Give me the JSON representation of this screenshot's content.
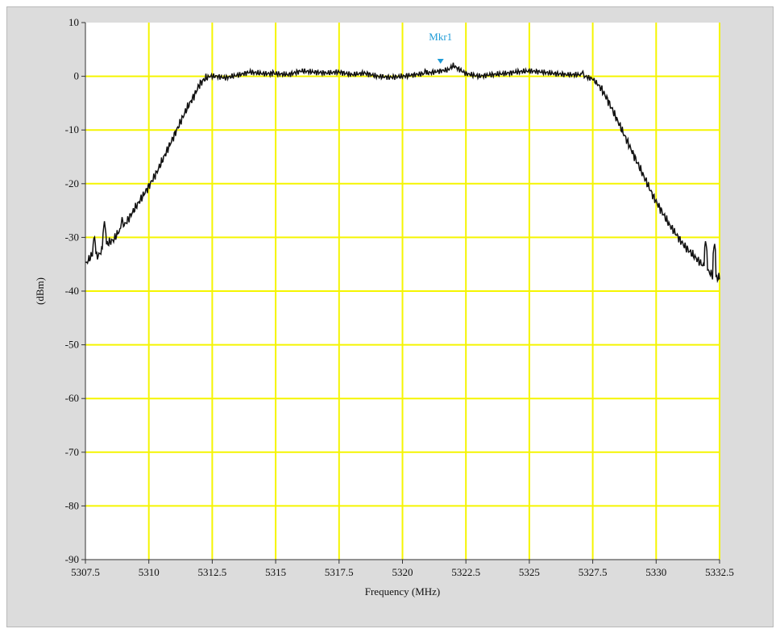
{
  "colors": {
    "panel": "#dcdcdc",
    "plot_background": "#ffffff",
    "grid": "#f5f500",
    "trace": "#111111",
    "marker": "#1e9bd7"
  },
  "chart_data": {
    "type": "line",
    "title": "",
    "xlabel": "Frequency (MHz)",
    "ylabel": "(dBm)",
    "xlim": [
      5307.5,
      5332.5
    ],
    "ylim": [
      -90,
      10
    ],
    "x_ticks": [
      5307.5,
      5310,
      5312.5,
      5315,
      5317.5,
      5320,
      5322.5,
      5325,
      5327.5,
      5330,
      5332.5
    ],
    "x_tick_labels": [
      "5307.5",
      "5310",
      "5312.5",
      "5315",
      "5317.5",
      "5320",
      "5322.5",
      "5325",
      "5327.5",
      "5330",
      "5332.5"
    ],
    "y_ticks": [
      10,
      0,
      -10,
      -20,
      -30,
      -40,
      -50,
      -60,
      -70,
      -80,
      -90
    ],
    "y_tick_labels": [
      "10",
      "0",
      "-10",
      "-20",
      "-30",
      "-40",
      "-50",
      "-60",
      "-70",
      "-80",
      "-90"
    ],
    "grid": true,
    "series": [
      {
        "x": [
          5307.5,
          5307.8,
          5308.0,
          5308.2,
          5308.4,
          5308.6,
          5308.8,
          5309.0,
          5309.2,
          5309.4,
          5309.6,
          5309.8,
          5310.0,
          5310.3,
          5310.6,
          5310.9,
          5311.2,
          5311.5,
          5311.8,
          5312.0,
          5312.2,
          5312.4,
          5312.7,
          5313.0,
          5313.5,
          5314.0,
          5314.5,
          5315.0,
          5315.5,
          5316.0,
          5316.5,
          5317.0,
          5317.5,
          5318.0,
          5318.5,
          5319.0,
          5319.5,
          5320.0,
          5320.5,
          5321.0,
          5321.5,
          5321.8,
          5322.0,
          5322.5,
          5323.0,
          5323.5,
          5324.0,
          5324.5,
          5325.0,
          5325.5,
          5326.0,
          5326.5,
          5327.0,
          5327.5,
          5327.8,
          5328.1,
          5328.4,
          5328.7,
          5329.0,
          5329.3,
          5329.6,
          5329.9,
          5330.2,
          5330.5,
          5330.8,
          5331.1,
          5331.4,
          5331.7,
          5332.0,
          5332.2,
          5332.35,
          5332.5
        ],
        "y": [
          -35,
          -33,
          -33.5,
          -32,
          -31,
          -30.5,
          -29,
          -28,
          -26.5,
          -25,
          -23.5,
          -22,
          -20.5,
          -18,
          -15,
          -12,
          -9,
          -6,
          -3.5,
          -1.5,
          -0.5,
          0,
          0,
          -0.3,
          0.2,
          0.8,
          0.5,
          0.5,
          0.3,
          1.0,
          0.8,
          0.6,
          0.8,
          0.3,
          0.6,
          0.0,
          -0.2,
          0.0,
          0.3,
          0.6,
          1.0,
          1.2,
          2.0,
          0.5,
          0.0,
          0.3,
          0.5,
          0.8,
          1.0,
          0.8,
          0.5,
          0.3,
          0.3,
          -0.5,
          -2,
          -4.5,
          -7.5,
          -10.5,
          -13.5,
          -16.5,
          -19.5,
          -22.5,
          -25,
          -27.5,
          -29.5,
          -31.5,
          -33,
          -34.5,
          -36,
          -37,
          -37.5,
          -37.5
        ]
      }
    ],
    "spurs": [
      {
        "x": 5307.85,
        "y": -29.5
      },
      {
        "x": 5308.25,
        "y": -27
      },
      {
        "x": 5308.95,
        "y": -26
      },
      {
        "x": 5314.9,
        "y": 1.5
      },
      {
        "x": 5320.9,
        "y": 1.7
      },
      {
        "x": 5327.1,
        "y": 1.4
      },
      {
        "x": 5331.95,
        "y": -30.5
      },
      {
        "x": 5332.3,
        "y": -31
      }
    ],
    "markers": [
      {
        "label": "Mkr1",
        "x": 5321.5,
        "y": 2.5
      }
    ]
  }
}
